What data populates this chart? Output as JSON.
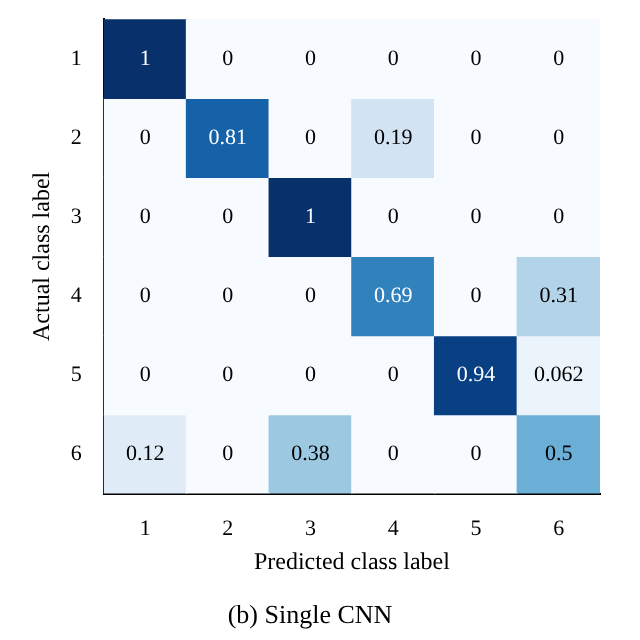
{
  "chart_data": {
    "type": "heatmap",
    "title": "(b) Single CNN",
    "xlabel": "Predicted class label",
    "ylabel": "Actual class label",
    "categories": [
      "1",
      "2",
      "3",
      "4",
      "5",
      "6"
    ],
    "y_categories": [
      "1",
      "2",
      "3",
      "4",
      "5",
      "6"
    ],
    "cells": [
      [
        1,
        0,
        0,
        0,
        0,
        0
      ],
      [
        0,
        0.81,
        0,
        0.19,
        0,
        0
      ],
      [
        0,
        0,
        1,
        0,
        0,
        0
      ],
      [
        0,
        0,
        0,
        0.69,
        0,
        0.31
      ],
      [
        0,
        0,
        0,
        0,
        0.94,
        0.062
      ],
      [
        0.12,
        0,
        0.38,
        0,
        0,
        0.5
      ]
    ],
    "data_labels": true
  }
}
